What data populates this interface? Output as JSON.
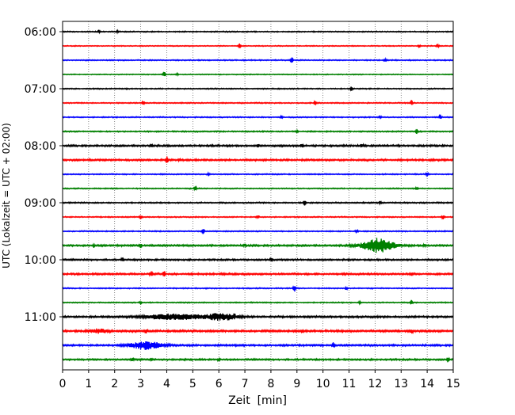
{
  "chart_data": {
    "type": "line",
    "title": "",
    "xlabel": "Zeit  [min]",
    "ylabel": "UTC (Lokalzeit = UTC + 02:00)",
    "xlim": [
      0,
      15
    ],
    "x_ticks": [
      "0",
      "1",
      "2",
      "3",
      "4",
      "5",
      "6",
      "7",
      "8",
      "9",
      "10",
      "11",
      "12",
      "13",
      "14",
      "15"
    ],
    "y_tick_labels": [
      "06:00",
      "07:00",
      "08:00",
      "09:00",
      "10:00",
      "11:00"
    ],
    "grid": "vertical dotted",
    "trace_interval_min": 15,
    "trace_colors": [
      "#000000",
      "#ff0000",
      "#0000ff",
      "#008000"
    ],
    "traces": [
      {
        "start": "06:00",
        "color": "#000000",
        "amp": 0.6,
        "events": [
          [
            1.4,
            2
          ],
          [
            2.1,
            1.5
          ]
        ]
      },
      {
        "start": "06:15",
        "color": "#ff0000",
        "amp": 0.5,
        "events": [
          [
            6.8,
            3
          ],
          [
            13.7,
            2
          ],
          [
            14.4,
            2.5
          ]
        ]
      },
      {
        "start": "06:30",
        "color": "#0000ff",
        "amp": 0.6,
        "events": [
          [
            8.8,
            4
          ],
          [
            12.4,
            1.5
          ]
        ]
      },
      {
        "start": "06:45",
        "color": "#008000",
        "amp": 0.5,
        "events": [
          [
            3.9,
            4
          ],
          [
            4.4,
            1.2
          ]
        ]
      },
      {
        "start": "07:00",
        "color": "#000000",
        "amp": 0.6,
        "events": [
          [
            11.1,
            3
          ]
        ]
      },
      {
        "start": "07:15",
        "color": "#ff0000",
        "amp": 0.6,
        "events": [
          [
            3.1,
            3
          ],
          [
            9.7,
            2.5
          ],
          [
            13.4,
            3
          ]
        ]
      },
      {
        "start": "07:30",
        "color": "#0000ff",
        "amp": 0.6,
        "events": [
          [
            8.4,
            2
          ],
          [
            12.2,
            1.5
          ],
          [
            14.5,
            3
          ]
        ]
      },
      {
        "start": "07:45",
        "color": "#008000",
        "amp": 0.7,
        "events": [
          [
            9.0,
            1.5
          ],
          [
            13.6,
            3
          ]
        ]
      },
      {
        "start": "08:00",
        "color": "#000000",
        "amp": 1.0,
        "events": [
          [
            3.4,
            2
          ],
          [
            7.5,
            1.5
          ],
          [
            9.2,
            3
          ],
          [
            11.5,
            3
          ]
        ]
      },
      {
        "start": "08:15",
        "color": "#ff0000",
        "amp": 1.0,
        "events": [
          [
            4.0,
            3.5
          ],
          [
            4.5,
            2.5
          ]
        ]
      },
      {
        "start": "08:30",
        "color": "#0000ff",
        "amp": 0.6,
        "events": [
          [
            5.6,
            1.5
          ],
          [
            14.0,
            2.5
          ]
        ]
      },
      {
        "start": "08:45",
        "color": "#008000",
        "amp": 0.6,
        "events": [
          [
            5.1,
            3.5
          ],
          [
            13.6,
            2
          ]
        ]
      },
      {
        "start": "09:00",
        "color": "#000000",
        "amp": 0.7,
        "events": [
          [
            9.3,
            3
          ],
          [
            12.2,
            2
          ]
        ]
      },
      {
        "start": "09:15",
        "color": "#ff0000",
        "amp": 0.6,
        "events": [
          [
            3.0,
            2
          ],
          [
            7.5,
            2
          ],
          [
            14.6,
            3
          ]
        ]
      },
      {
        "start": "09:30",
        "color": "#0000ff",
        "amp": 0.6,
        "events": [
          [
            5.4,
            3
          ],
          [
            11.3,
            1.5
          ]
        ]
      },
      {
        "start": "09:45",
        "color": "#008000",
        "amp": 1.0,
        "events": [
          [
            1.2,
            2
          ],
          [
            3.0,
            2
          ],
          [
            7.0,
            2
          ],
          [
            13.9,
            2
          ]
        ],
        "bursts": [
          [
            12.1,
            0.9,
            9
          ]
        ]
      },
      {
        "start": "10:00",
        "color": "#000000",
        "amp": 0.9,
        "events": [
          [
            2.3,
            2
          ],
          [
            8.0,
            2
          ]
        ]
      },
      {
        "start": "10:15",
        "color": "#ff0000",
        "amp": 1.0,
        "events": [
          [
            3.4,
            3
          ],
          [
            3.9,
            3.5
          ],
          [
            13.4,
            2
          ]
        ]
      },
      {
        "start": "10:30",
        "color": "#0000ff",
        "amp": 0.6,
        "events": [
          [
            8.9,
            4
          ],
          [
            10.9,
            1.5
          ]
        ]
      },
      {
        "start": "10:45",
        "color": "#008000",
        "amp": 0.6,
        "events": [
          [
            3.0,
            2
          ],
          [
            11.4,
            1.5
          ],
          [
            13.4,
            3
          ]
        ]
      },
      {
        "start": "11:00",
        "color": "#000000",
        "amp": 1.0,
        "events": [
          [
            6.6,
            2
          ]
        ],
        "bursts": [
          [
            4.3,
            1.6,
            3.5
          ],
          [
            6.1,
            0.9,
            4
          ]
        ]
      },
      {
        "start": "11:15",
        "color": "#ff0000",
        "amp": 1.1,
        "events": [
          [
            3.2,
            3
          ],
          [
            9.2,
            2
          ],
          [
            13.4,
            3
          ]
        ],
        "bursts": [
          [
            1.4,
            0.5,
            2.5
          ]
        ]
      },
      {
        "start": "11:30",
        "color": "#0000ff",
        "amp": 1.0,
        "events": [
          [
            10.4,
            3
          ]
        ],
        "bursts": [
          [
            3.2,
            0.9,
            5
          ]
        ]
      },
      {
        "start": "11:45",
        "color": "#008000",
        "amp": 0.9,
        "events": [
          [
            2.7,
            3
          ],
          [
            3.4,
            1.5
          ],
          [
            6.0,
            2
          ],
          [
            14.8,
            3
          ]
        ]
      }
    ]
  }
}
